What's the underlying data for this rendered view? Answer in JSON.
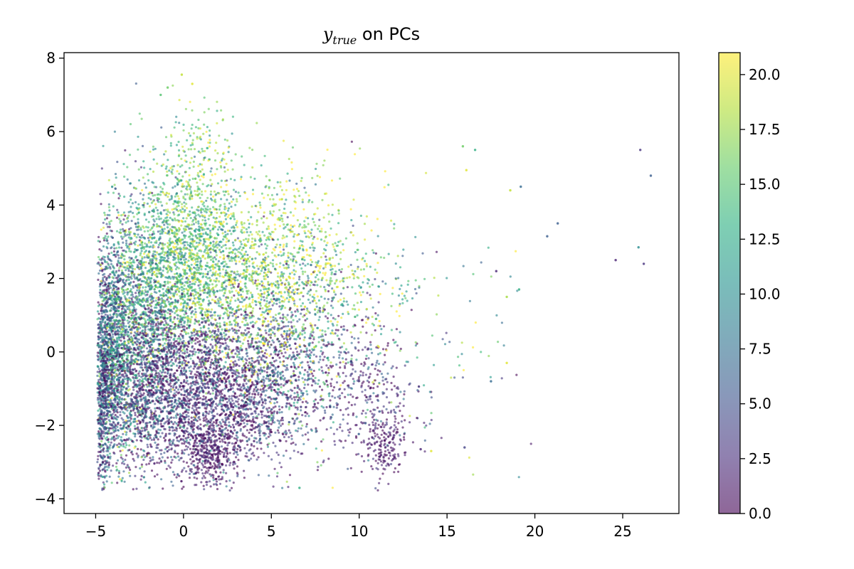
{
  "chart_data": {
    "type": "scatter",
    "title": {
      "symbol": "y",
      "subscript": "true",
      "suffix": " on PCs"
    },
    "xlabel": "",
    "ylabel": "",
    "xlim": [
      -6.8,
      28.2
    ],
    "ylim": [
      -4.4,
      8.15
    ],
    "x_ticks": [
      -5,
      0,
      5,
      10,
      15,
      20,
      25
    ],
    "x_tick_labels": [
      "−5",
      "0",
      "5",
      "10",
      "15",
      "20",
      "25"
    ],
    "y_ticks": [
      -4,
      -2,
      0,
      2,
      4,
      6,
      8
    ],
    "y_tick_labels": [
      "−4",
      "−2",
      "0",
      "2",
      "4",
      "6",
      "8"
    ],
    "grid": false,
    "colormap": "viridis",
    "alpha": 0.6,
    "colorbar": {
      "range": [
        0,
        21
      ],
      "ticks": [
        0,
        2.5,
        5,
        7.5,
        10,
        12.5,
        15,
        17.5,
        20
      ],
      "tick_labels": [
        "0.0",
        "2.5",
        "5.0",
        "7.5",
        "10.0",
        "12.5",
        "15.0",
        "17.5",
        "20.0"
      ]
    },
    "clusters": [
      {
        "cx": -4.2,
        "cy": 0.0,
        "sx": 0.5,
        "sy": 1.5,
        "n": 1100,
        "c_mean": 7,
        "c_sd": 5
      },
      {
        "cx": -3.0,
        "cy": 0.5,
        "sx": 1.0,
        "sy": 1.8,
        "n": 1300,
        "c_mean": 9,
        "c_sd": 6
      },
      {
        "cx": -1.0,
        "cy": 2.2,
        "sx": 1.5,
        "sy": 1.4,
        "n": 1200,
        "c_mean": 13,
        "c_sd": 4
      },
      {
        "cx": 1.0,
        "cy": 2.6,
        "sx": 1.5,
        "sy": 1.3,
        "n": 900,
        "c_mean": 15,
        "c_sd": 4
      },
      {
        "cx": -1.5,
        "cy": -1.0,
        "sx": 1.5,
        "sy": 1.1,
        "n": 1200,
        "c_mean": 3,
        "c_sd": 4
      },
      {
        "cx": 1.5,
        "cy": -1.0,
        "sx": 1.8,
        "sy": 1.2,
        "n": 1300,
        "c_mean": 2,
        "c_sd": 3
      },
      {
        "cx": 1.5,
        "cy": -2.7,
        "sx": 0.8,
        "sy": 0.5,
        "n": 350,
        "c_mean": 1,
        "c_sd": 2
      },
      {
        "cx": 4.0,
        "cy": 1.8,
        "sx": 1.8,
        "sy": 1.3,
        "n": 900,
        "c_mean": 16,
        "c_sd": 5
      },
      {
        "cx": 4.5,
        "cy": -1.0,
        "sx": 1.8,
        "sy": 1.1,
        "n": 900,
        "c_mean": 3,
        "c_sd": 4
      },
      {
        "cx": 7.0,
        "cy": 0.5,
        "sx": 1.5,
        "sy": 1.4,
        "n": 500,
        "c_mean": 9,
        "c_sd": 7
      },
      {
        "cx": 7.0,
        "cy": 3.0,
        "sx": 1.5,
        "sy": 1.0,
        "n": 250,
        "c_mean": 18,
        "c_sd": 3
      },
      {
        "cx": 10.5,
        "cy": -1.2,
        "sx": 1.5,
        "sy": 1.0,
        "n": 350,
        "c_mean": 2,
        "c_sd": 3
      },
      {
        "cx": 11.5,
        "cy": -2.6,
        "sx": 0.6,
        "sy": 0.4,
        "n": 150,
        "c_mean": 1,
        "c_sd": 1
      },
      {
        "cx": 10.0,
        "cy": 1.8,
        "sx": 2.0,
        "sy": 1.2,
        "n": 200,
        "c_mean": 15,
        "c_sd": 6
      },
      {
        "cx": 15.0,
        "cy": 0.5,
        "sx": 2.5,
        "sy": 1.8,
        "n": 70,
        "c_mean": 10,
        "c_sd": 7
      },
      {
        "cx": 0.5,
        "cy": 5.5,
        "sx": 1.0,
        "sy": 0.8,
        "n": 120,
        "c_mean": 17,
        "c_sd": 3
      },
      {
        "cx": -4.6,
        "cy": -1.5,
        "sx": 0.3,
        "sy": 1.2,
        "n": 400,
        "c_mean": 4,
        "c_sd": 4
      }
    ],
    "outliers": [
      {
        "x": 26.0,
        "y": 5.5,
        "c": 3
      },
      {
        "x": 26.6,
        "y": 4.8,
        "c": 6
      },
      {
        "x": 24.6,
        "y": 2.5,
        "c": 2
      },
      {
        "x": 25.9,
        "y": 2.85,
        "c": 10
      },
      {
        "x": 26.2,
        "y": 2.4,
        "c": 3
      },
      {
        "x": 21.3,
        "y": 3.5,
        "c": 6
      },
      {
        "x": 20.7,
        "y": 3.15,
        "c": 6
      },
      {
        "x": 19.2,
        "y": 4.5,
        "c": 7
      },
      {
        "x": 18.6,
        "y": 4.4,
        "c": 19
      },
      {
        "x": 19.1,
        "y": 1.7,
        "c": 13
      },
      {
        "x": 18.4,
        "y": 1.5,
        "c": 18
      },
      {
        "x": 17.8,
        "y": 2.2,
        "c": 2
      },
      {
        "x": 17.5,
        "y": -0.8,
        "c": 7
      },
      {
        "x": 18.4,
        "y": -0.3,
        "c": 20
      },
      {
        "x": 16.6,
        "y": 5.5,
        "c": 13
      },
      {
        "x": 15.9,
        "y": 5.6,
        "c": 16
      },
      {
        "x": 16.0,
        "y": -2.6,
        "c": 4
      },
      {
        "x": 16.1,
        "y": 4.95,
        "c": 20
      },
      {
        "x": -0.1,
        "y": 7.55,
        "c": 19
      },
      {
        "x": 0.5,
        "y": 7.3,
        "c": 20
      },
      {
        "x": -1.3,
        "y": 7.0,
        "c": 15
      },
      {
        "x": -0.9,
        "y": 7.2,
        "c": 16
      },
      {
        "x": 13.5,
        "y": -2.65,
        "c": 2
      },
      {
        "x": 14.1,
        "y": -2.7,
        "c": 20
      },
      {
        "x": 6.6,
        "y": -3.7,
        "c": 13
      },
      {
        "x": -4.6,
        "y": -3.4,
        "c": 12
      }
    ]
  }
}
